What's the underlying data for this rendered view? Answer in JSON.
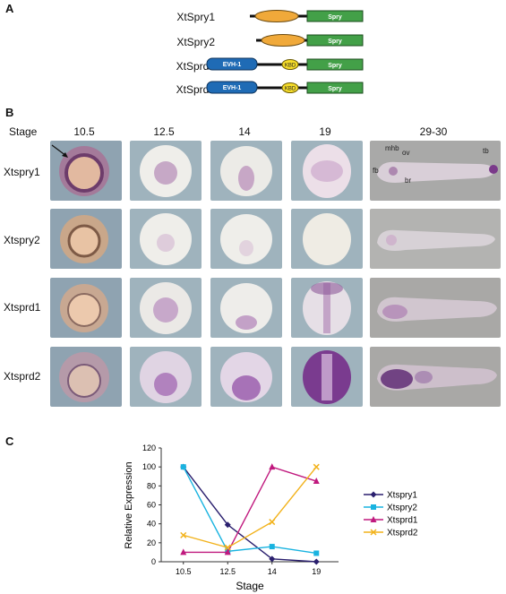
{
  "panels": {
    "a": "A",
    "b": "B",
    "c": "C"
  },
  "proteins": [
    {
      "name": "XtSpry1",
      "domains": {
        "spry": "Spry"
      }
    },
    {
      "name": "XtSpry2",
      "domains": {
        "spry": "Spry"
      }
    },
    {
      "name": "XtSprd1",
      "domains": {
        "evh": "EVH-1",
        "kbd": "KBD",
        "spry": "Spry"
      }
    },
    {
      "name": "XtSprd2",
      "domains": {
        "evh": "EVH-1",
        "kbd": "KBD",
        "spry": "Spry"
      }
    }
  ],
  "panel_b": {
    "stage_label": "Stage",
    "stages": [
      "10.5",
      "12.5",
      "14",
      "19",
      "29-30"
    ],
    "genes": [
      "Xtspry1",
      "Xtspry2",
      "Xtsprd1",
      "Xtsprd2"
    ],
    "annotations": {
      "mhb": "mhb",
      "ov": "ov",
      "fb": "fb",
      "br": "br",
      "tb": "tb"
    }
  },
  "chart_data": {
    "type": "line",
    "categories": [
      "10.5",
      "12.5",
      "14",
      "19"
    ],
    "xlabel": "Stage",
    "ylabel": "Relative Expression",
    "ylim": [
      0,
      120
    ],
    "yticks": [
      0,
      10,
      20,
      30,
      40,
      50,
      60,
      70,
      80,
      90,
      100,
      110,
      120
    ],
    "legend_position": "right",
    "series": [
      {
        "name": "Xtspry1",
        "values": [
          100,
          39,
          3,
          0
        ],
        "color": "#2a1f6e",
        "marker": "diamond"
      },
      {
        "name": "Xtspry2",
        "values": [
          100,
          11,
          16,
          9
        ],
        "color": "#19b3e0",
        "marker": "square"
      },
      {
        "name": "Xtsprd1",
        "values": [
          10,
          10,
          100,
          85
        ],
        "color": "#c0197e",
        "marker": "triangle"
      },
      {
        "name": "Xtsprd2",
        "values": [
          28,
          15,
          42,
          100
        ],
        "color": "#f2b21b",
        "marker": "x"
      }
    ]
  }
}
